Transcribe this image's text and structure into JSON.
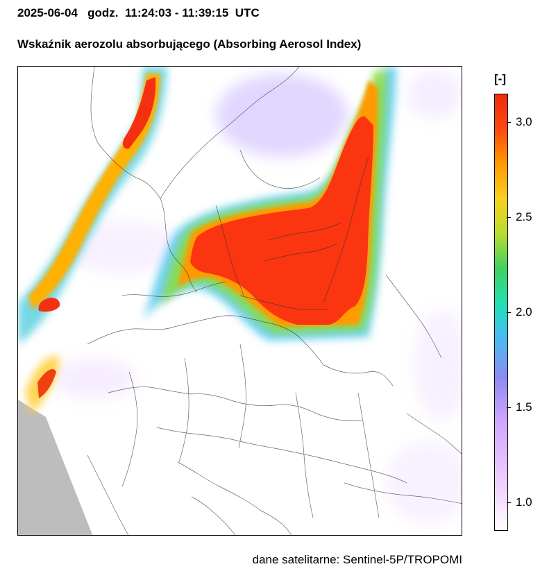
{
  "header": {
    "date": "2025-06-04",
    "time_label": "godz.",
    "time_range": "11:24:03 - 11:39:15",
    "timezone": "UTC",
    "title": "Wskaźnik aerozolu absorbującego (Absorbing Aerosol Index)"
  },
  "legend": {
    "unit": "[-]",
    "ticks": [
      {
        "label": "3.0",
        "value": 3.0
      },
      {
        "label": "2.5",
        "value": 2.5
      },
      {
        "label": "2.0",
        "value": 2.0
      },
      {
        "label": "1.5",
        "value": 1.5
      },
      {
        "label": "1.0",
        "value": 1.0
      }
    ],
    "range": [
      0.85,
      3.15
    ],
    "colors": [
      "#ffffff",
      "#f0d2ff",
      "#cfa6ff",
      "#8c8cf0",
      "#44bff0",
      "#22e0b4",
      "#40d060",
      "#b8dc30",
      "#f8d020",
      "#ff9a00",
      "#ff4a10",
      "#ee2a0a"
    ]
  },
  "footer": {
    "source": "dane satelitarne: Sentinel-5P/TROPOMI"
  },
  "map": {
    "no_data_color": "#bdbdbd",
    "border_color": "#333333"
  }
}
